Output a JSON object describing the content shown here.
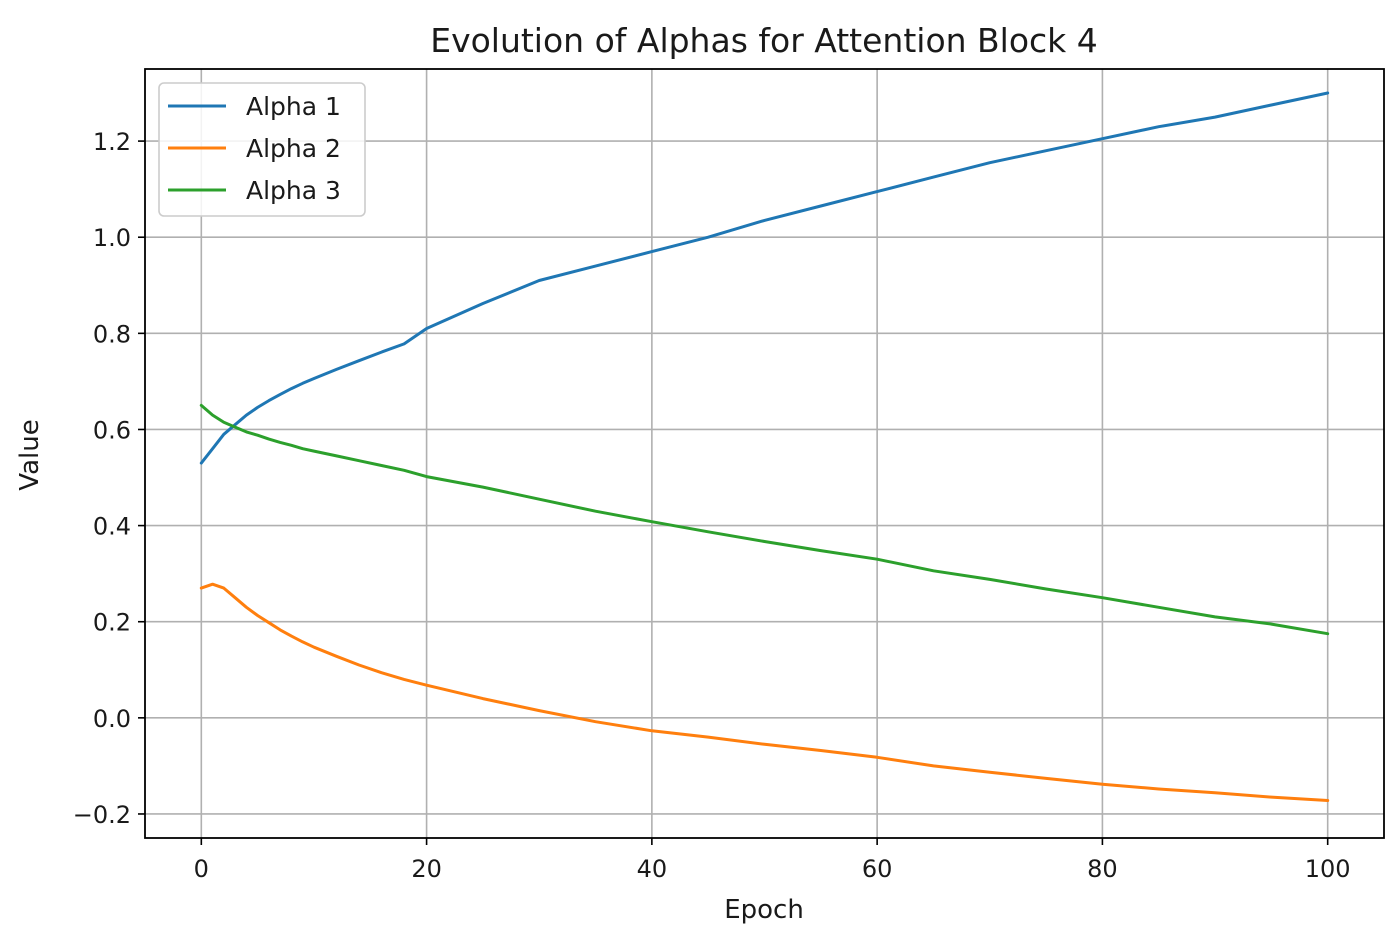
{
  "chart_data": {
    "type": "line",
    "title": "Evolution of Alphas for Attention Block 4",
    "xlabel": "Epoch",
    "ylabel": "Value",
    "xlim": [
      -5,
      105
    ],
    "ylim": [
      -0.25,
      1.35
    ],
    "xticks": [
      0,
      20,
      40,
      60,
      80,
      100
    ],
    "xtick_labels": [
      "0",
      "20",
      "40",
      "60",
      "80",
      "100"
    ],
    "yticks": [
      -0.2,
      0.0,
      0.2,
      0.4,
      0.6,
      0.8,
      1.0,
      1.2
    ],
    "ytick_labels": [
      "−0.2",
      "0.0",
      "0.2",
      "0.4",
      "0.6",
      "0.8",
      "1.0",
      "1.2"
    ],
    "grid": true,
    "legend_position": "top-left",
    "x": [
      0,
      1,
      2,
      3,
      4,
      5,
      6,
      7,
      8,
      9,
      10,
      12,
      14,
      16,
      18,
      20,
      25,
      30,
      35,
      40,
      45,
      50,
      55,
      60,
      65,
      70,
      75,
      80,
      85,
      90,
      95,
      100
    ],
    "series": [
      {
        "name": "Alpha 1",
        "color": "#1f77b4",
        "values": [
          0.53,
          0.56,
          0.59,
          0.61,
          0.63,
          0.646,
          0.66,
          0.673,
          0.685,
          0.696,
          0.706,
          0.725,
          0.743,
          0.761,
          0.778,
          0.81,
          0.862,
          0.91,
          0.94,
          0.97,
          1.0,
          1.035,
          1.065,
          1.095,
          1.125,
          1.155,
          1.18,
          1.205,
          1.23,
          1.25,
          1.275,
          1.3
        ]
      },
      {
        "name": "Alpha 2",
        "color": "#ff7f0e",
        "values": [
          0.27,
          0.278,
          0.27,
          0.25,
          0.23,
          0.213,
          0.198,
          0.183,
          0.17,
          0.158,
          0.147,
          0.128,
          0.11,
          0.094,
          0.08,
          0.068,
          0.04,
          0.015,
          -0.008,
          -0.027,
          -0.04,
          -0.055,
          -0.068,
          -0.082,
          -0.1,
          -0.113,
          -0.126,
          -0.138,
          -0.148,
          -0.156,
          -0.165,
          -0.172
        ]
      },
      {
        "name": "Alpha 3",
        "color": "#2ca02c",
        "values": [
          0.65,
          0.63,
          0.615,
          0.605,
          0.595,
          0.588,
          0.58,
          0.573,
          0.567,
          0.56,
          0.555,
          0.545,
          0.535,
          0.525,
          0.515,
          0.502,
          0.48,
          0.455,
          0.43,
          0.408,
          0.387,
          0.367,
          0.348,
          0.33,
          0.306,
          0.288,
          0.268,
          0.25,
          0.23,
          0.21,
          0.195,
          0.175
        ]
      }
    ]
  }
}
